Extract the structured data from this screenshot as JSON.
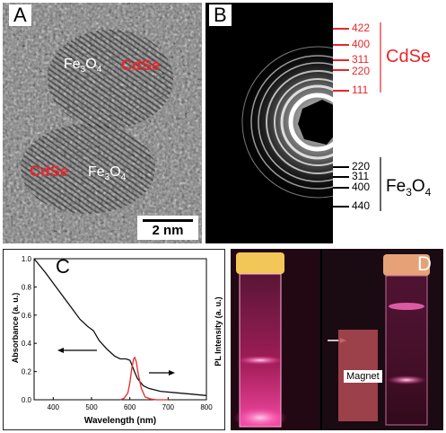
{
  "colors": {
    "cdse": "#e8262b",
    "fe3o4": "#000000",
    "absorbance": "#111111",
    "pl": "#e8262b"
  },
  "panel_a": {
    "letter": "A",
    "label_fe3o4_top": "Fe3O4",
    "label_cdse_top": "CdSe",
    "label_cdse_bottom": "CdSe",
    "label_fe3o4_bottom": "Fe3O4",
    "scale_bar_label": "2 nm"
  },
  "panel_b": {
    "letter": "B",
    "cdse_label": "CdSe",
    "fe3o4_label": "Fe3O4",
    "cdse_rings": [
      "422",
      "400",
      "311",
      "220",
      "111"
    ],
    "fe3o4_rings": [
      "220",
      "311",
      "400",
      "440"
    ]
  },
  "panel_c": {
    "letter": "C",
    "ylabel_left": "Absorbance (a. u.)",
    "ylabel_right": "PL Intensity (a. u.)",
    "xlabel": "Wavelength (nm)"
  },
  "panel_d": {
    "letter": "D",
    "magnet_label": "Magnet"
  },
  "chart_data": {
    "type": "line",
    "xlabel": "Wavelength (nm)",
    "ylabel": "Absorbance (a. u.)",
    "xlim": [
      350,
      800
    ],
    "ylim": [
      0.0,
      1.0
    ],
    "x_ticks": [
      400,
      500,
      600,
      700,
      800
    ],
    "y_ticks": [
      "0.0",
      "0.2",
      "0.4",
      "0.6",
      "0.8",
      "1.0"
    ],
    "series": [
      {
        "axis": "left",
        "x": [
          350,
          380,
          410,
          440,
          470,
          490,
          505,
          520,
          540,
          560,
          575,
          590,
          600,
          605,
          612,
          620,
          635,
          650,
          680,
          720,
          760,
          800
        ],
        "y": [
          1.0,
          0.9,
          0.79,
          0.68,
          0.57,
          0.52,
          0.49,
          0.42,
          0.36,
          0.31,
          0.29,
          0.29,
          0.28,
          0.25,
          0.2,
          0.15,
          0.1,
          0.08,
          0.06,
          0.05,
          0.04,
          0.03
        ]
      },
      {
        "axis": "right",
        "x": [
          575,
          585,
          595,
          600,
          605,
          610,
          613,
          617,
          622,
          630,
          640,
          655,
          670,
          700
        ],
        "y": [
          0.0,
          0.01,
          0.05,
          0.12,
          0.22,
          0.29,
          0.3,
          0.27,
          0.18,
          0.08,
          0.02,
          0.005,
          0.0,
          0.0
        ]
      }
    ]
  }
}
